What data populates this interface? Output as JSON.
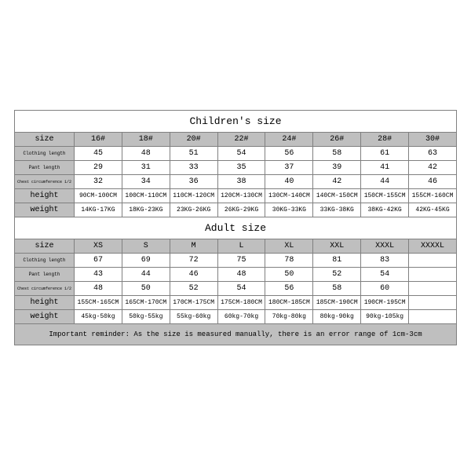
{
  "children": {
    "title": "Children's size",
    "title_fontsize": 13,
    "row_label_fontsize_normal": 10,
    "row_label_fontsize_small": 6,
    "cell_fontsize": 8,
    "header_bg": "#bfbfbf",
    "border_color": "#808080",
    "sizes": [
      "16#",
      "18#",
      "20#",
      "22#",
      "24#",
      "26#",
      "28#",
      "30#"
    ],
    "clothing": [
      "45",
      "48",
      "51",
      "54",
      "56",
      "58",
      "61",
      "63"
    ],
    "pant": [
      "29",
      "31",
      "33",
      "35",
      "37",
      "39",
      "41",
      "42"
    ],
    "chest": [
      "32",
      "34",
      "36",
      "38",
      "40",
      "42",
      "44",
      "46"
    ],
    "height": [
      "90CM-100CM",
      "100CM-110CM",
      "110CM-120CM",
      "120CM-130CM",
      "130CM-140CM",
      "140CM-150CM",
      "150CM-155CM",
      "155CM-160CM"
    ],
    "weight": [
      "14KG-17KG",
      "18KG-23KG",
      "23KG-26KG",
      "26KG-29KG",
      "30KG-33KG",
      "33KG-38KG",
      "38KG-42KG",
      "42KG-45KG"
    ],
    "labels": {
      "size": "size",
      "clothing": "Clothing length",
      "pant": "Pant length",
      "chest": "Chest circumference 1/2",
      "height": "height",
      "weight": "weight"
    }
  },
  "adult": {
    "title": "Adult size",
    "title_fontsize": 13,
    "sizes": [
      "XS",
      "S",
      "M",
      "L",
      "XL",
      "XXL",
      "XXXL",
      "XXXXL"
    ],
    "clothing": [
      "67",
      "69",
      "72",
      "75",
      "78",
      "81",
      "83",
      ""
    ],
    "pant": [
      "43",
      "44",
      "46",
      "48",
      "50",
      "52",
      "54",
      ""
    ],
    "chest": [
      "48",
      "50",
      "52",
      "54",
      "56",
      "58",
      "60",
      ""
    ],
    "height": [
      "155CM-165CM",
      "165CM-170CM",
      "170CM-175CM",
      "175CM-180CM",
      "180CM-185CM",
      "185CM-190CM",
      "190CM-195CM",
      ""
    ],
    "weight": [
      "45kg-50kg",
      "50kg-55kg",
      "55kg-60kg",
      "60kg-70kg",
      "70kg-80kg",
      "80kg-90kg",
      "90kg-105kg",
      ""
    ],
    "labels": {
      "size": "size",
      "clothing": "Clothing length",
      "pant": "Pant length",
      "chest": "Chest circumference 1/2",
      "height": "height",
      "weight": "weight"
    }
  },
  "note": "Important reminder: As the size is measured manually, there is an error range of 1cm-3cm",
  "note_fontsize": 9
}
